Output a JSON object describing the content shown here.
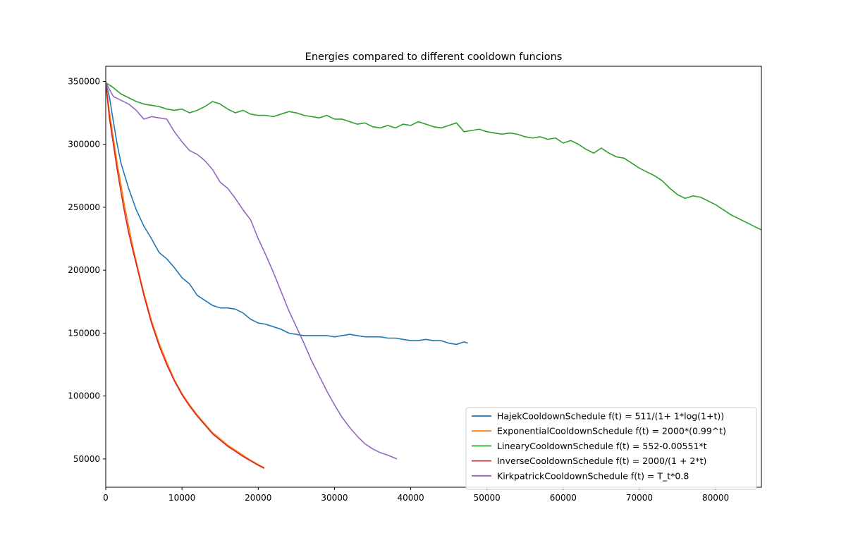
{
  "chart_data": {
    "type": "line",
    "title": "Energies compared to different cooldown funcions",
    "xlabel": "",
    "ylabel": "",
    "xlim": [
      0,
      86000
    ],
    "ylim": [
      27500,
      362000
    ],
    "xticks": [
      0,
      10000,
      20000,
      30000,
      40000,
      50000,
      60000,
      70000,
      80000
    ],
    "yticks": [
      50000,
      100000,
      150000,
      200000,
      250000,
      300000,
      350000
    ],
    "grid": false,
    "legend_position": "lower-right",
    "series": [
      {
        "name": "HajekCooldownSchedule f(t) = 511/(1+ 1*log(1+t))",
        "color": "#1f77b4",
        "points": [
          [
            0,
            349000
          ],
          [
            500,
            337000
          ],
          [
            1000,
            318000
          ],
          [
            1500,
            300000
          ],
          [
            2000,
            285000
          ],
          [
            3000,
            265000
          ],
          [
            4000,
            248000
          ],
          [
            5000,
            235000
          ],
          [
            6000,
            225000
          ],
          [
            7000,
            214000
          ],
          [
            8000,
            209000
          ],
          [
            9000,
            202000
          ],
          [
            10000,
            194000
          ],
          [
            11000,
            189000
          ],
          [
            12000,
            180000
          ],
          [
            13000,
            176000
          ],
          [
            14000,
            172000
          ],
          [
            15000,
            170000
          ],
          [
            16000,
            170000
          ],
          [
            17000,
            169000
          ],
          [
            18000,
            166000
          ],
          [
            19000,
            161000
          ],
          [
            20000,
            158000
          ],
          [
            21000,
            157000
          ],
          [
            22000,
            155000
          ],
          [
            23000,
            153000
          ],
          [
            24000,
            150000
          ],
          [
            25000,
            149000
          ],
          [
            26000,
            148000
          ],
          [
            27000,
            148000
          ],
          [
            28000,
            148000
          ],
          [
            29000,
            148000
          ],
          [
            30000,
            147000
          ],
          [
            31000,
            148000
          ],
          [
            32000,
            149000
          ],
          [
            33000,
            148000
          ],
          [
            34000,
            147000
          ],
          [
            35000,
            147000
          ],
          [
            36000,
            147000
          ],
          [
            37000,
            146000
          ],
          [
            38000,
            146000
          ],
          [
            39000,
            145000
          ],
          [
            40000,
            144000
          ],
          [
            41000,
            144000
          ],
          [
            42000,
            145000
          ],
          [
            43000,
            144000
          ],
          [
            44000,
            144000
          ],
          [
            45000,
            142000
          ],
          [
            46000,
            141000
          ],
          [
            47000,
            143000
          ],
          [
            47500,
            142000
          ]
        ]
      },
      {
        "name": "ExponentialCooldownSchedule f(t) = 2000*(0.99^t)",
        "color": "#ff7f0e",
        "points": [
          [
            0,
            349000
          ],
          [
            500,
            325000
          ],
          [
            1000,
            305000
          ],
          [
            1500,
            285000
          ],
          [
            2000,
            268000
          ],
          [
            2500,
            250000
          ],
          [
            3000,
            235000
          ],
          [
            3500,
            220000
          ],
          [
            4000,
            207000
          ],
          [
            5000,
            182000
          ],
          [
            6000,
            160000
          ],
          [
            7000,
            142000
          ],
          [
            8000,
            127000
          ],
          [
            9000,
            113000
          ],
          [
            10000,
            102000
          ],
          [
            11000,
            93000
          ],
          [
            12000,
            85000
          ],
          [
            13000,
            78000
          ],
          [
            14000,
            71000
          ],
          [
            15000,
            66000
          ],
          [
            16000,
            61000
          ],
          [
            17000,
            57000
          ],
          [
            18000,
            53000
          ],
          [
            19000,
            49000
          ],
          [
            20000,
            45500
          ],
          [
            20800,
            43000
          ]
        ]
      },
      {
        "name": "LinearyCooldownSchedule f(t) = 552-0.00551*t",
        "color": "#2ca02c",
        "points": [
          [
            0,
            349000
          ],
          [
            1000,
            345000
          ],
          [
            2000,
            340000
          ],
          [
            3000,
            337000
          ],
          [
            4000,
            334000
          ],
          [
            5000,
            332000
          ],
          [
            6000,
            331000
          ],
          [
            7000,
            330000
          ],
          [
            8000,
            328000
          ],
          [
            9000,
            327000
          ],
          [
            10000,
            328000
          ],
          [
            11000,
            325000
          ],
          [
            12000,
            327000
          ],
          [
            13000,
            330000
          ],
          [
            14000,
            334000
          ],
          [
            15000,
            332000
          ],
          [
            16000,
            328000
          ],
          [
            17000,
            325000
          ],
          [
            18000,
            327000
          ],
          [
            19000,
            324000
          ],
          [
            20000,
            323000
          ],
          [
            21000,
            323000
          ],
          [
            22000,
            322000
          ],
          [
            23000,
            324000
          ],
          [
            24000,
            326000
          ],
          [
            25000,
            325000
          ],
          [
            26000,
            323000
          ],
          [
            27000,
            322000
          ],
          [
            28000,
            321000
          ],
          [
            29000,
            323000
          ],
          [
            30000,
            320000
          ],
          [
            31000,
            320000
          ],
          [
            32000,
            318000
          ],
          [
            33000,
            316000
          ],
          [
            34000,
            317000
          ],
          [
            35000,
            314000
          ],
          [
            36000,
            313000
          ],
          [
            37000,
            315000
          ],
          [
            38000,
            313000
          ],
          [
            39000,
            316000
          ],
          [
            40000,
            315000
          ],
          [
            41000,
            318000
          ],
          [
            42000,
            316000
          ],
          [
            43000,
            314000
          ],
          [
            44000,
            313000
          ],
          [
            45000,
            315000
          ],
          [
            46000,
            317000
          ],
          [
            47000,
            310000
          ],
          [
            48000,
            311000
          ],
          [
            49000,
            312000
          ],
          [
            50000,
            310000
          ],
          [
            51000,
            309000
          ],
          [
            52000,
            308000
          ],
          [
            53000,
            309000
          ],
          [
            54000,
            308000
          ],
          [
            55000,
            306000
          ],
          [
            56000,
            305000
          ],
          [
            57000,
            306000
          ],
          [
            58000,
            304000
          ],
          [
            59000,
            305000
          ],
          [
            60000,
            301000
          ],
          [
            61000,
            303000
          ],
          [
            62000,
            300000
          ],
          [
            63000,
            296000
          ],
          [
            64000,
            293000
          ],
          [
            65000,
            297000
          ],
          [
            66000,
            293000
          ],
          [
            67000,
            290000
          ],
          [
            68000,
            289000
          ],
          [
            69000,
            285000
          ],
          [
            70000,
            281000
          ],
          [
            71000,
            278000
          ],
          [
            72000,
            275000
          ],
          [
            73000,
            271000
          ],
          [
            74000,
            265000
          ],
          [
            75000,
            260000
          ],
          [
            76000,
            257000
          ],
          [
            77000,
            259000
          ],
          [
            78000,
            258000
          ],
          [
            79000,
            255000
          ],
          [
            80000,
            252000
          ],
          [
            81000,
            248000
          ],
          [
            82000,
            244000
          ],
          [
            83000,
            241000
          ],
          [
            84000,
            238000
          ],
          [
            85000,
            235000
          ],
          [
            86000,
            232000
          ]
        ]
      },
      {
        "name": "InverseCooldownSchedule f(t) = 2000/(1 + 2*t)",
        "color": "#d62728",
        "points": [
          [
            0,
            349000
          ],
          [
            500,
            320000
          ],
          [
            1000,
            300000
          ],
          [
            1500,
            280000
          ],
          [
            2000,
            262000
          ],
          [
            2500,
            245000
          ],
          [
            3000,
            230000
          ],
          [
            3500,
            217000
          ],
          [
            4000,
            205000
          ],
          [
            5000,
            180000
          ],
          [
            6000,
            158000
          ],
          [
            7000,
            140000
          ],
          [
            8000,
            125000
          ],
          [
            9000,
            112000
          ],
          [
            10000,
            101000
          ],
          [
            11000,
            92000
          ],
          [
            12000,
            84000
          ],
          [
            13000,
            77000
          ],
          [
            14000,
            70000
          ],
          [
            15000,
            65000
          ],
          [
            16000,
            60000
          ],
          [
            17000,
            56000
          ],
          [
            18000,
            52000
          ],
          [
            19000,
            48500
          ],
          [
            20000,
            45000
          ],
          [
            20800,
            42500
          ]
        ]
      },
      {
        "name": "KirkpatrickCooldownSchedule f(t) = T_t*0.8",
        "color": "#9467bd",
        "points": [
          [
            0,
            349000
          ],
          [
            1000,
            338000
          ],
          [
            2000,
            335000
          ],
          [
            3000,
            332000
          ],
          [
            4000,
            327000
          ],
          [
            5000,
            320000
          ],
          [
            6000,
            322000
          ],
          [
            7000,
            321000
          ],
          [
            8000,
            320000
          ],
          [
            9000,
            310000
          ],
          [
            10000,
            302000
          ],
          [
            11000,
            295000
          ],
          [
            12000,
            292000
          ],
          [
            13000,
            287000
          ],
          [
            14000,
            280000
          ],
          [
            15000,
            270000
          ],
          [
            16000,
            265000
          ],
          [
            17000,
            257000
          ],
          [
            18000,
            248000
          ],
          [
            19000,
            240000
          ],
          [
            20000,
            225000
          ],
          [
            21000,
            212000
          ],
          [
            22000,
            198000
          ],
          [
            23000,
            183000
          ],
          [
            24000,
            168000
          ],
          [
            25000,
            155000
          ],
          [
            26000,
            142000
          ],
          [
            27000,
            128000
          ],
          [
            28000,
            116000
          ],
          [
            29000,
            104000
          ],
          [
            30000,
            93000
          ],
          [
            31000,
            83000
          ],
          [
            32000,
            75000
          ],
          [
            33000,
            68000
          ],
          [
            34000,
            62000
          ],
          [
            35000,
            58000
          ],
          [
            36000,
            55000
          ],
          [
            37000,
            53000
          ],
          [
            38200,
            50000
          ]
        ]
      }
    ]
  }
}
